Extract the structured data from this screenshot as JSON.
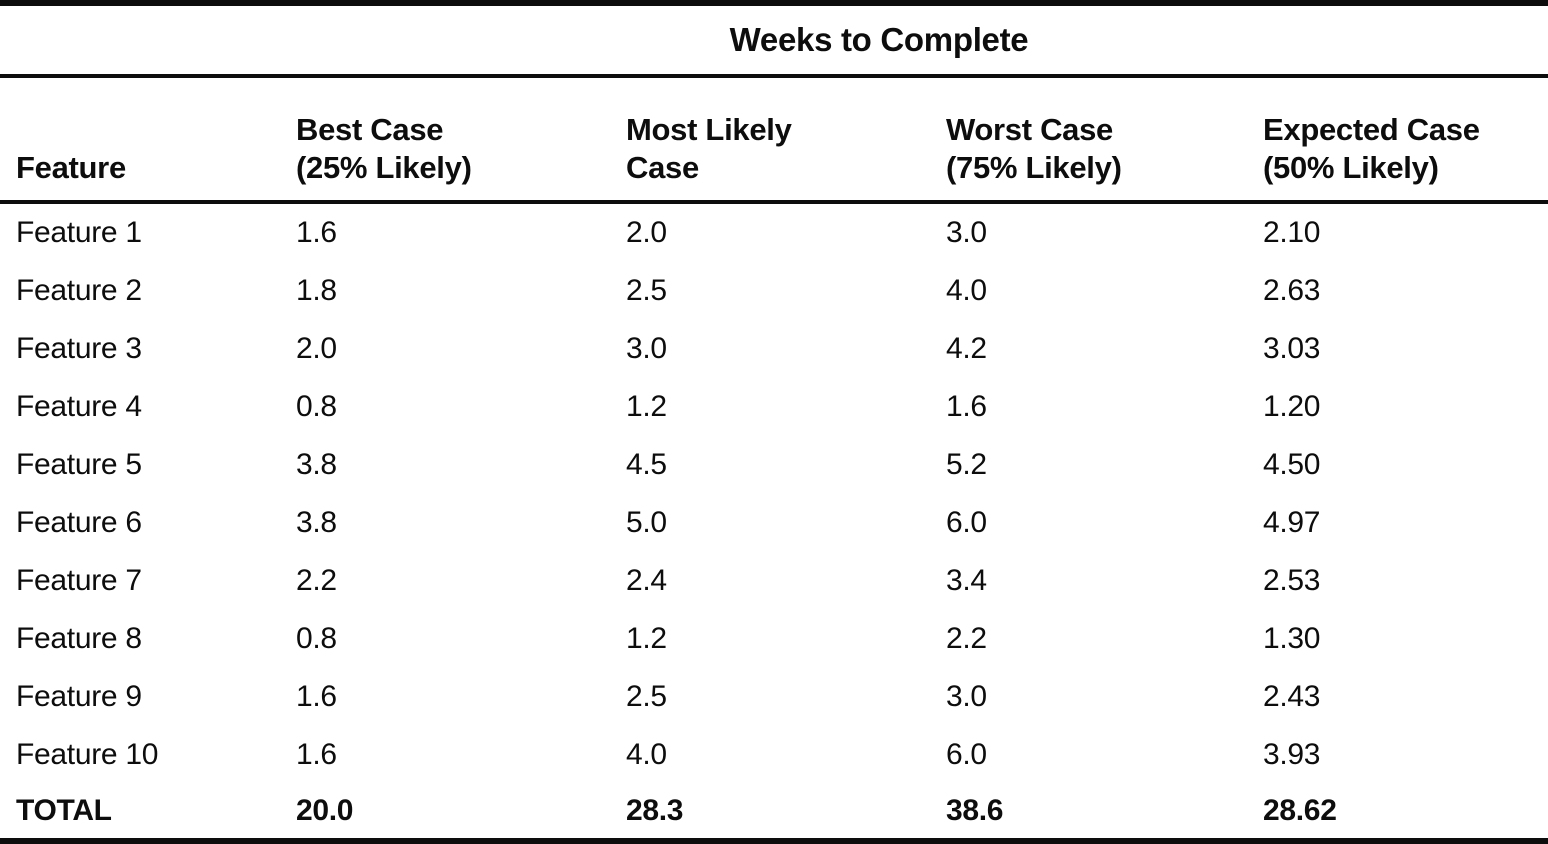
{
  "page": {
    "ink_color": "#0d0d0d",
    "background_color": "#ffffff"
  },
  "table": {
    "span_header": "Weeks to Complete",
    "columns": {
      "feature": "Feature",
      "best": {
        "line1": "Best Case",
        "line2": "(25% Likely)"
      },
      "likely": {
        "line1": "Most Likely",
        "line2": "Case"
      },
      "worst": {
        "line1": "Worst Case",
        "line2": "(75% Likely)"
      },
      "expected": {
        "line1": "Expected Case",
        "line2": "(50% Likely)"
      }
    },
    "rows": [
      {
        "feature": "Feature 1",
        "best": "1.6",
        "likely": "2.0",
        "worst": "3.0",
        "expected": "2.10"
      },
      {
        "feature": "Feature 2",
        "best": "1.8",
        "likely": "2.5",
        "worst": "4.0",
        "expected": "2.63"
      },
      {
        "feature": "Feature 3",
        "best": "2.0",
        "likely": "3.0",
        "worst": "4.2",
        "expected": "3.03"
      },
      {
        "feature": "Feature 4",
        "best": "0.8",
        "likely": "1.2",
        "worst": "1.6",
        "expected": "1.20"
      },
      {
        "feature": "Feature 5",
        "best": "3.8",
        "likely": "4.5",
        "worst": "5.2",
        "expected": "4.50"
      },
      {
        "feature": "Feature 6",
        "best": "3.8",
        "likely": "5.0",
        "worst": "6.0",
        "expected": "4.97"
      },
      {
        "feature": "Feature 7",
        "best": "2.2",
        "likely": "2.4",
        "worst": "3.4",
        "expected": "2.53"
      },
      {
        "feature": "Feature 8",
        "best": "0.8",
        "likely": "1.2",
        "worst": "2.2",
        "expected": "1.30"
      },
      {
        "feature": "Feature 9",
        "best": "1.6",
        "likely": "2.5",
        "worst": "3.0",
        "expected": "2.43"
      },
      {
        "feature": "Feature 10",
        "best": "1.6",
        "likely": "4.0",
        "worst": "6.0",
        "expected": "3.93"
      }
    ],
    "total": {
      "feature": "TOTAL",
      "best": "20.0",
      "likely": "28.3",
      "worst": "38.6",
      "expected": "28.62"
    }
  }
}
